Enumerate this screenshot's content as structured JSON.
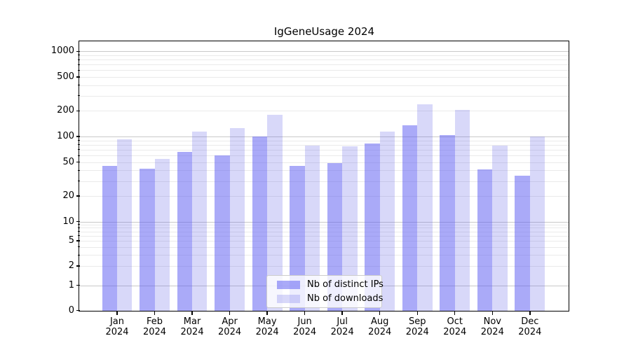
{
  "title": "IgGeneUsage 2024",
  "chart_data": {
    "type": "bar",
    "title": "IgGeneUsage 2024",
    "categories": [
      "Jan 2024",
      "Feb 2024",
      "Mar 2024",
      "Apr 2024",
      "May 2024",
      "Jun 2024",
      "Jul 2024",
      "Aug 2024",
      "Sep 2024",
      "Oct 2024",
      "Nov 2024",
      "Dec 2024"
    ],
    "x_tick_months": [
      "Jan",
      "Feb",
      "Mar",
      "Apr",
      "May",
      "Jun",
      "Jul",
      "Aug",
      "Sep",
      "Oct",
      "Nov",
      "Dec"
    ],
    "x_tick_year": "2024",
    "series": [
      {
        "name": "Nb of distinct IPs",
        "color": "rgba(85,85,241,0.5)",
        "values": [
          45,
          42,
          66,
          60,
          100,
          45,
          49,
          83,
          135,
          104,
          41,
          35
        ]
      },
      {
        "name": "Nb of downloads",
        "color": "rgba(100,100,230,0.25)",
        "values": [
          93,
          55,
          114,
          126,
          180,
          78,
          77,
          115,
          238,
          204,
          78,
          100
        ]
      }
    ],
    "y_ticks": [
      0,
      1,
      2,
      5,
      10,
      20,
      50,
      100,
      200,
      500,
      1000
    ],
    "y_scale": "symlog",
    "ylim": [
      0,
      1280
    ],
    "xlabel": "",
    "ylabel": "",
    "grid": "horizontal major and log-minor gridlines",
    "legend_position": "lower center"
  },
  "colors": {
    "bar_distinct_ips": "rgba(85,85,241,0.5)",
    "bar_downloads": "rgba(100,100,230,0.25)",
    "major_grid": "#c9c9c9",
    "minor_grid": "#eaeaea",
    "spine": "#000000",
    "background": "#ffffff"
  }
}
